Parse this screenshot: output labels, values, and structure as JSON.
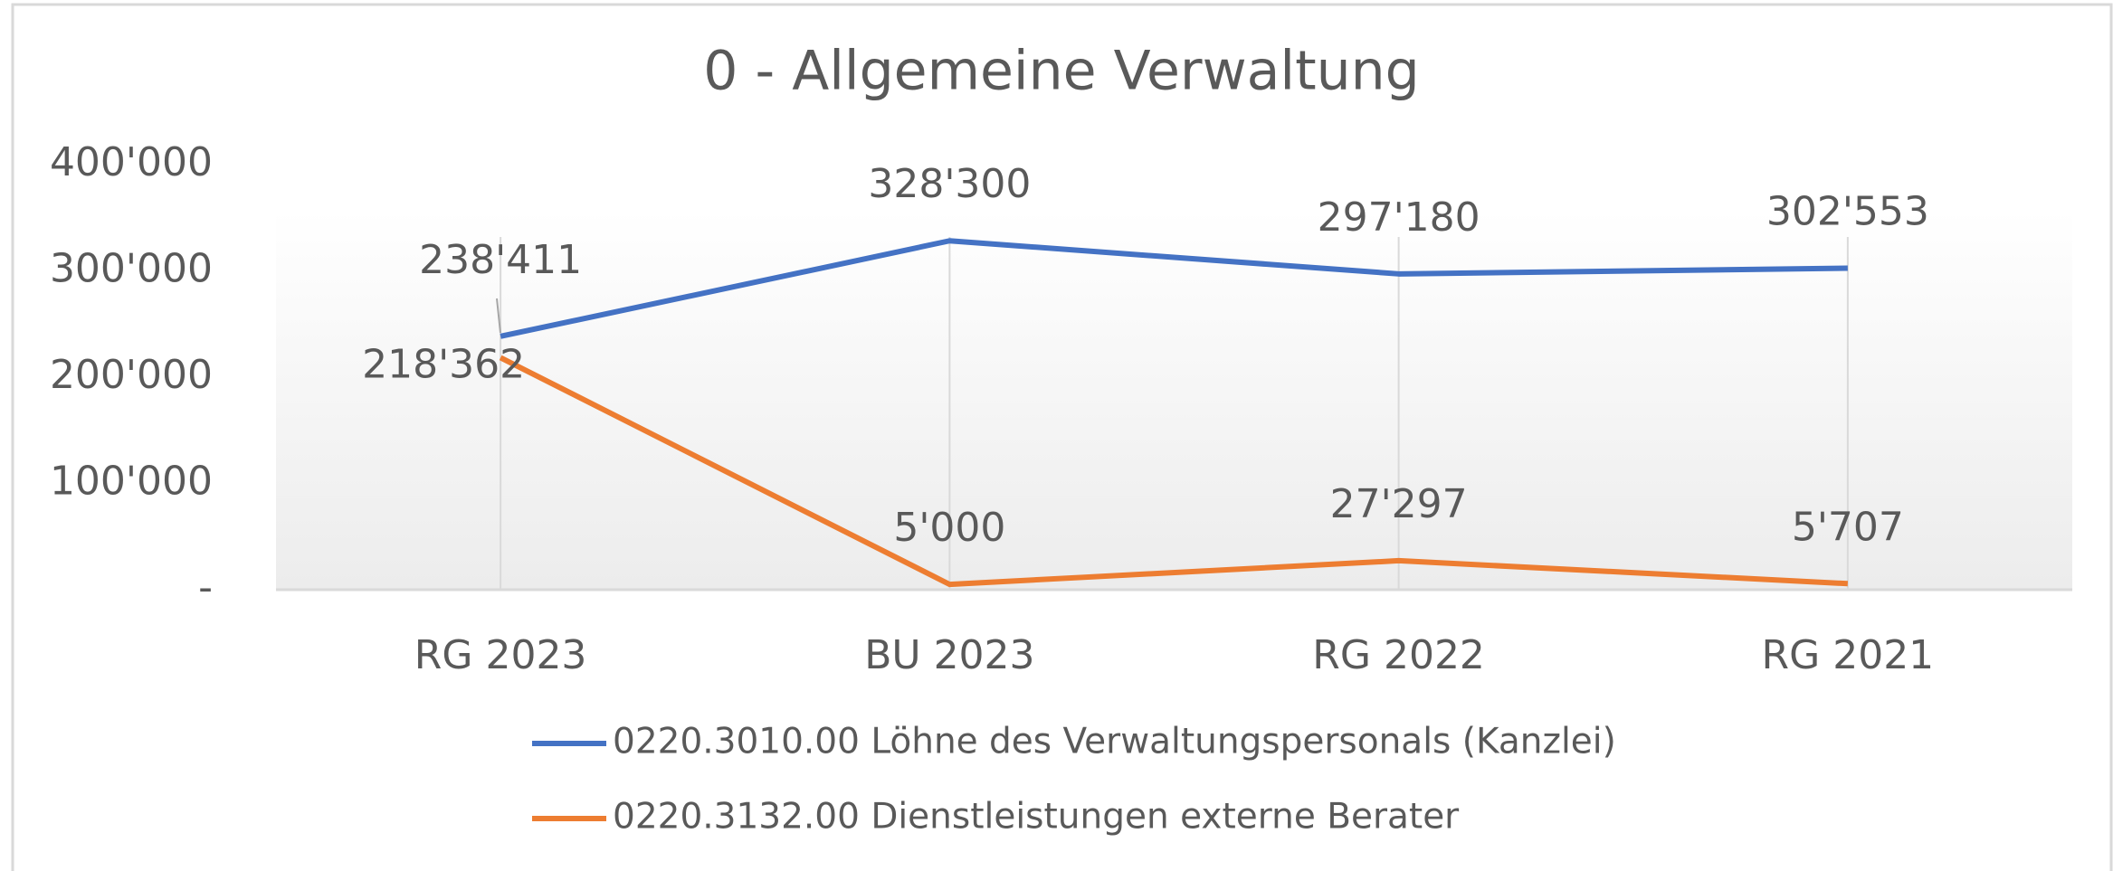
{
  "chart_data": {
    "type": "line",
    "title": "0 - Allgemeine Verwaltung",
    "categories": [
      "RG 2023",
      "BU 2023",
      "RG 2022",
      "RG 2021"
    ],
    "series": [
      {
        "name": "0220.3010.00 Löhne des Verwaltungspersonals (Kanzlei)",
        "color": "#4472c4",
        "values": [
          238411,
          328300,
          297180,
          302553
        ],
        "value_labels": [
          "238'411",
          "328'300",
          "297'180",
          "302'553"
        ]
      },
      {
        "name": "0220.3132.00 Dienstleistungen externe Berater",
        "color": "#ed7d31",
        "values": [
          218362,
          5000,
          27297,
          5707
        ],
        "value_labels": [
          "218'362",
          "5'000",
          "27'297",
          "5'707"
        ]
      }
    ],
    "ylim": [
      0,
      400000
    ],
    "yticks": [
      {
        "value": 0,
        "label": "-"
      },
      {
        "value": 100000,
        "label": "100'000"
      },
      {
        "value": 200000,
        "label": "200'000"
      },
      {
        "value": 300000,
        "label": "300'000"
      },
      {
        "value": 400000,
        "label": "400'000"
      }
    ],
    "grid": "vertical",
    "legend": "bottom"
  }
}
